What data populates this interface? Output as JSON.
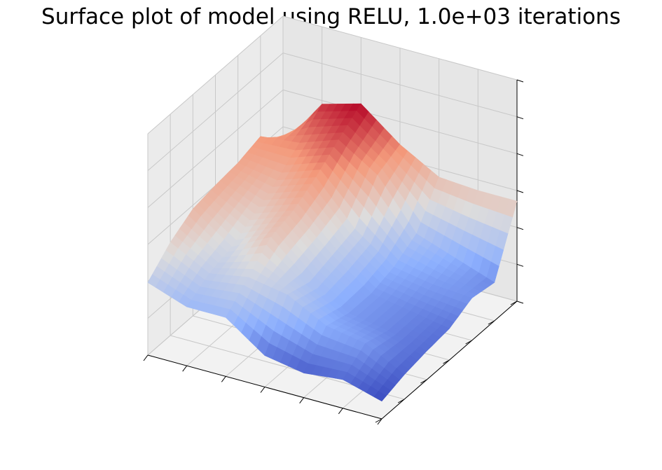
{
  "chart_data": {
    "type": "surface",
    "title": "Surface plot of model using RELU, 1.0e+03 iterations",
    "xlabel": "",
    "ylabel": "",
    "zlabel": "",
    "tick_labels_shown": false,
    "grid": true,
    "colormap": "coolwarm",
    "colormap_stops": [
      "#3b4cc0",
      "#8db0fe",
      "#dddcdc",
      "#f49a7b",
      "#b40426"
    ],
    "pane_color": "#f2f2f2",
    "x": [
      0,
      1,
      2,
      3,
      4,
      5,
      6
    ],
    "y": [
      0,
      1,
      2,
      3,
      4,
      5,
      6
    ],
    "z": [
      [
        0.0,
        0.05,
        0.08,
        0.1,
        0.18,
        0.15,
        0.6
      ],
      [
        0.08,
        0.2,
        0.15,
        0.15,
        0.2,
        0.25,
        0.6
      ],
      [
        0.05,
        0.25,
        0.2,
        0.2,
        0.25,
        0.35,
        0.62
      ],
      [
        0.1,
        0.4,
        0.35,
        0.4,
        0.45,
        0.7,
        0.78
      ],
      [
        0.3,
        0.45,
        0.6,
        0.65,
        0.75,
        0.88,
        1.0
      ],
      [
        0.3,
        0.4,
        0.45,
        0.55,
        0.65,
        0.78,
        0.92
      ],
      [
        0.4,
        0.55,
        0.65,
        0.68,
        0.7,
        0.75,
        0.55
      ]
    ]
  }
}
